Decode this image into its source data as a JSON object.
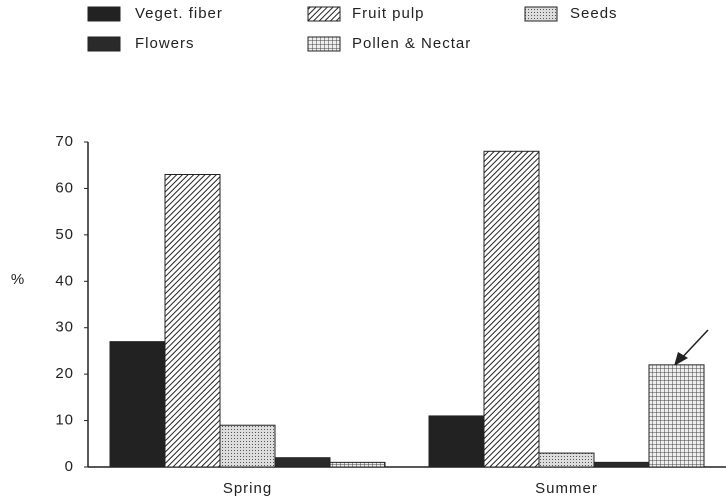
{
  "chart_data": {
    "type": "bar",
    "categories": [
      "Spring",
      "Summer"
    ],
    "series": [
      {
        "name": "Veget. fiber",
        "color": "#222222",
        "pattern": "solid",
        "values": [
          27,
          11
        ]
      },
      {
        "name": "Fruit pulp",
        "color": "#222222",
        "pattern": "hatch",
        "values": [
          63,
          68
        ]
      },
      {
        "name": "Seeds",
        "color": "#555555",
        "pattern": "dots",
        "values": [
          9,
          3
        ]
      },
      {
        "name": "Flowers",
        "color": "#2a2a2a",
        "pattern": "solid",
        "values": [
          2,
          1
        ]
      },
      {
        "name": "Pollen & Nectar",
        "color": "#444444",
        "pattern": "grid",
        "values": [
          1,
          22
        ]
      }
    ],
    "ylabel": "%",
    "ylim": [
      0,
      70
    ],
    "yticks": [
      0,
      10,
      20,
      30,
      40,
      50,
      60,
      70
    ]
  }
}
